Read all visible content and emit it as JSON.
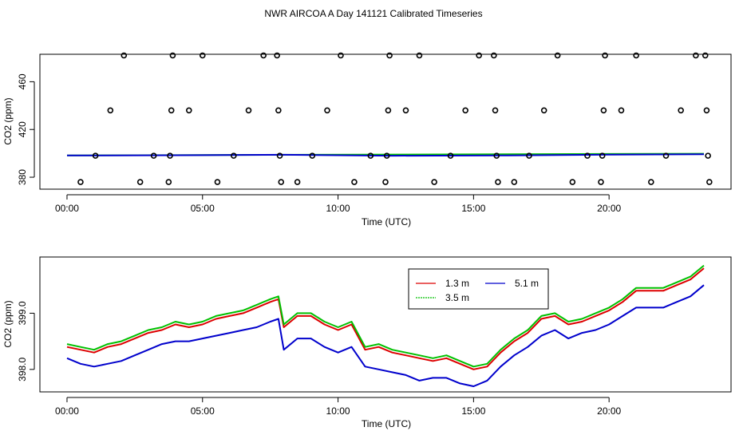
{
  "figure": {
    "title": "NWR AIRCOA A  Day 141121  Calibrated Timeseries"
  },
  "chart_data": [
    {
      "type": "scatter",
      "ylabel": "CO2 (ppm)",
      "xlabel": "Time (UTC)",
      "xlim": [
        -1.0,
        24.5
      ],
      "ylim": [
        370,
        483
      ],
      "xticks": [
        0,
        5,
        10,
        15,
        20
      ],
      "xtick_labels": [
        "00:00",
        "05:00",
        "10:00",
        "15:00",
        "20:00"
      ],
      "yticks": [
        380,
        420,
        460
      ],
      "ytick_labels": [
        "380",
        "420",
        "460"
      ],
      "outliers": [
        {
          "t": 0.5,
          "v": 376
        },
        {
          "t": 1.05,
          "v": 398
        },
        {
          "t": 1.6,
          "v": 436
        },
        {
          "t": 2.1,
          "v": 482
        },
        {
          "t": 2.7,
          "v": 376
        },
        {
          "t": 3.2,
          "v": 398
        },
        {
          "t": 3.75,
          "v": 376
        },
        {
          "t": 3.8,
          "v": 398
        },
        {
          "t": 3.85,
          "v": 436
        },
        {
          "t": 3.9,
          "v": 482
        },
        {
          "t": 4.5,
          "v": 436
        },
        {
          "t": 5.0,
          "v": 482
        },
        {
          "t": 5.55,
          "v": 376
        },
        {
          "t": 6.15,
          "v": 398
        },
        {
          "t": 6.7,
          "v": 436
        },
        {
          "t": 7.25,
          "v": 482
        },
        {
          "t": 7.75,
          "v": 482
        },
        {
          "t": 7.8,
          "v": 436
        },
        {
          "t": 7.85,
          "v": 398
        },
        {
          "t": 7.9,
          "v": 376
        },
        {
          "t": 8.5,
          "v": 376
        },
        {
          "t": 9.05,
          "v": 398
        },
        {
          "t": 9.6,
          "v": 436
        },
        {
          "t": 10.1,
          "v": 482
        },
        {
          "t": 10.6,
          "v": 376
        },
        {
          "t": 11.2,
          "v": 398
        },
        {
          "t": 11.75,
          "v": 376
        },
        {
          "t": 11.8,
          "v": 398
        },
        {
          "t": 11.85,
          "v": 436
        },
        {
          "t": 11.9,
          "v": 482
        },
        {
          "t": 12.5,
          "v": 436
        },
        {
          "t": 13.0,
          "v": 482
        },
        {
          "t": 13.55,
          "v": 376
        },
        {
          "t": 14.15,
          "v": 398
        },
        {
          "t": 14.7,
          "v": 436
        },
        {
          "t": 15.2,
          "v": 482
        },
        {
          "t": 15.75,
          "v": 482
        },
        {
          "t": 15.8,
          "v": 436
        },
        {
          "t": 15.85,
          "v": 398
        },
        {
          "t": 15.9,
          "v": 376
        },
        {
          "t": 16.5,
          "v": 376
        },
        {
          "t": 17.05,
          "v": 398
        },
        {
          "t": 17.6,
          "v": 436
        },
        {
          "t": 18.1,
          "v": 482
        },
        {
          "t": 18.65,
          "v": 376
        },
        {
          "t": 19.2,
          "v": 398
        },
        {
          "t": 19.7,
          "v": 376
        },
        {
          "t": 19.75,
          "v": 398
        },
        {
          "t": 19.8,
          "v": 436
        },
        {
          "t": 19.85,
          "v": 482
        },
        {
          "t": 20.45,
          "v": 436
        },
        {
          "t": 21.0,
          "v": 482
        },
        {
          "t": 21.55,
          "v": 376
        },
        {
          "t": 22.1,
          "v": 398
        },
        {
          "t": 22.65,
          "v": 436
        },
        {
          "t": 23.2,
          "v": 482
        },
        {
          "t": 23.55,
          "v": 482
        },
        {
          "t": 23.6,
          "v": 436
        },
        {
          "t": 23.65,
          "v": 398
        },
        {
          "t": 23.7,
          "v": 376
        }
      ],
      "series": [
        {
          "name": "3.5 m",
          "color": "#00c000",
          "t": [
            0,
            23.5
          ],
          "v": [
            398.3,
            399.7
          ]
        },
        {
          "name": "5.1 m",
          "color": "#0000cc",
          "t": [
            0,
            4,
            8,
            12,
            16,
            20,
            23.5
          ],
          "v": [
            398.2,
            398.4,
            398.8,
            398.0,
            398.2,
            398.9,
            399.2
          ]
        }
      ]
    },
    {
      "type": "line",
      "ylabel": "CO2 (ppm)",
      "xlabel": "Time (UTC)",
      "xlim": [
        -1.0,
        24.5
      ],
      "ylim": [
        397.6,
        400.0
      ],
      "xticks": [
        0,
        5,
        10,
        15,
        20
      ],
      "xtick_labels": [
        "00:00",
        "05:00",
        "10:00",
        "15:00",
        "20:00"
      ],
      "yticks": [
        398.0,
        399.0
      ],
      "ytick_labels": [
        "398.0",
        "399.0"
      ],
      "legend": {
        "position": "top-center",
        "entries": [
          "1.3 m",
          "5.1 m",
          "3.5 m"
        ]
      },
      "series": [
        {
          "name": "1.3 m",
          "color": "#dd0000",
          "t": [
            0,
            0.5,
            1.0,
            1.5,
            2.0,
            2.5,
            3.0,
            3.5,
            4.0,
            4.5,
            5.0,
            5.5,
            6.0,
            6.5,
            7.0,
            7.5,
            7.8,
            8.0,
            8.5,
            9.0,
            9.5,
            10.0,
            10.5,
            11.0,
            11.5,
            12.0,
            12.5,
            13.0,
            13.5,
            14.0,
            14.5,
            15.0,
            15.5,
            16.0,
            16.5,
            17.0,
            17.5,
            18.0,
            18.5,
            19.0,
            19.5,
            20.0,
            20.5,
            21.0,
            21.5,
            22.0,
            22.5,
            23.0,
            23.5
          ],
          "v": [
            398.4,
            398.35,
            398.3,
            398.4,
            398.45,
            398.55,
            398.65,
            398.7,
            398.8,
            398.75,
            398.8,
            398.9,
            398.95,
            399.0,
            399.1,
            399.2,
            399.25,
            398.75,
            398.95,
            398.95,
            398.8,
            398.7,
            398.8,
            398.35,
            398.4,
            398.3,
            398.25,
            398.2,
            398.15,
            398.2,
            398.1,
            398.0,
            398.05,
            398.3,
            398.5,
            398.65,
            398.9,
            398.95,
            398.8,
            398.85,
            398.95,
            399.05,
            399.2,
            399.4,
            399.4,
            399.4,
            399.5,
            399.6,
            399.8
          ]
        },
        {
          "name": "3.5 m",
          "color": "#00c000",
          "t": [
            0,
            0.5,
            1.0,
            1.5,
            2.0,
            2.5,
            3.0,
            3.5,
            4.0,
            4.5,
            5.0,
            5.5,
            6.0,
            6.5,
            7.0,
            7.5,
            7.8,
            8.0,
            8.5,
            9.0,
            9.5,
            10.0,
            10.5,
            11.0,
            11.5,
            12.0,
            12.5,
            13.0,
            13.5,
            14.0,
            14.5,
            15.0,
            15.5,
            16.0,
            16.5,
            17.0,
            17.5,
            18.0,
            18.5,
            19.0,
            19.5,
            20.0,
            20.5,
            21.0,
            21.5,
            22.0,
            22.5,
            23.0,
            23.5
          ],
          "v": [
            398.45,
            398.4,
            398.35,
            398.45,
            398.5,
            398.6,
            398.7,
            398.75,
            398.85,
            398.8,
            398.85,
            398.95,
            399.0,
            399.05,
            399.15,
            399.25,
            399.3,
            398.8,
            399.0,
            399.0,
            398.85,
            398.75,
            398.85,
            398.4,
            398.45,
            398.35,
            398.3,
            398.25,
            398.2,
            398.25,
            398.15,
            398.05,
            398.1,
            398.35,
            398.55,
            398.7,
            398.95,
            399.0,
            398.85,
            398.9,
            399.0,
            399.1,
            399.25,
            399.45,
            399.45,
            399.45,
            399.55,
            399.65,
            399.85
          ]
        },
        {
          "name": "5.1 m",
          "color": "#0000cc",
          "t": [
            0,
            0.5,
            1.0,
            1.5,
            2.0,
            2.5,
            3.0,
            3.5,
            4.0,
            4.5,
            5.0,
            5.5,
            6.0,
            6.5,
            7.0,
            7.5,
            7.8,
            8.0,
            8.5,
            9.0,
            9.5,
            10.0,
            10.5,
            11.0,
            11.5,
            12.0,
            12.5,
            13.0,
            13.5,
            14.0,
            14.5,
            15.0,
            15.5,
            16.0,
            16.5,
            17.0,
            17.5,
            18.0,
            18.5,
            19.0,
            19.5,
            20.0,
            20.5,
            21.0,
            21.5,
            22.0,
            22.5,
            23.0,
            23.5
          ],
          "v": [
            398.2,
            398.1,
            398.05,
            398.1,
            398.15,
            398.25,
            398.35,
            398.45,
            398.5,
            398.5,
            398.55,
            398.6,
            398.65,
            398.7,
            398.75,
            398.85,
            398.9,
            398.35,
            398.55,
            398.55,
            398.4,
            398.3,
            398.4,
            398.05,
            398.0,
            397.95,
            397.9,
            397.8,
            397.85,
            397.85,
            397.75,
            397.7,
            397.8,
            398.05,
            398.25,
            398.4,
            398.6,
            398.7,
            398.55,
            398.65,
            398.7,
            398.8,
            398.95,
            399.1,
            399.1,
            399.1,
            399.2,
            399.3,
            399.5
          ]
        }
      ]
    }
  ]
}
